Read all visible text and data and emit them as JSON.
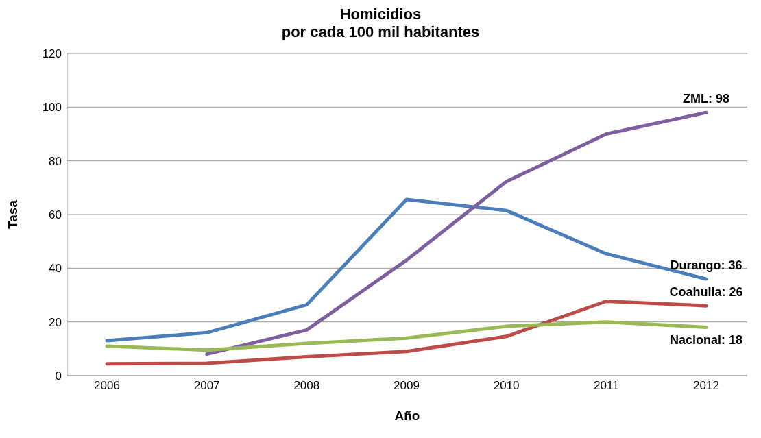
{
  "chart_data": {
    "type": "line",
    "title": "Homicidios\npor cada 100 mil habitantes",
    "xlabel": "Año",
    "ylabel": "Tasa",
    "categories": [
      "2006",
      "2007",
      "2008",
      "2009",
      "2010",
      "2011",
      "2012"
    ],
    "series": [
      {
        "color": "#4a7ebb",
        "values": [
          13,
          16,
          26.4,
          65.6,
          61.5,
          45.4,
          36
        ]
      },
      {
        "color": "#7d5fa0",
        "values": [
          null,
          8,
          17,
          43,
          72.3,
          90,
          98
        ]
      },
      {
        "color": "#be4b48",
        "values": [
          4.4,
          4.6,
          7,
          9,
          14.6,
          27.7,
          26
        ]
      },
      {
        "color": "#98b954",
        "values": [
          11,
          9.5,
          12,
          14,
          18.4,
          20,
          18
        ]
      }
    ],
    "annotations": [
      {
        "text": "ZML: 98",
        "x": "2012",
        "y": 98
      },
      {
        "text": "Durango: 36",
        "x": "2012",
        "y": 36
      },
      {
        "text": "Coahuila: 26",
        "x": "2012",
        "y": 26
      },
      {
        "text": "Nacional: 18",
        "x": "2012",
        "y": 18
      }
    ],
    "ylim": [
      0,
      120
    ],
    "yticks": [
      0,
      20,
      40,
      60,
      80,
      100,
      120
    ],
    "grid": "y",
    "legend": false,
    "marker": "none",
    "line_style": "solid"
  }
}
